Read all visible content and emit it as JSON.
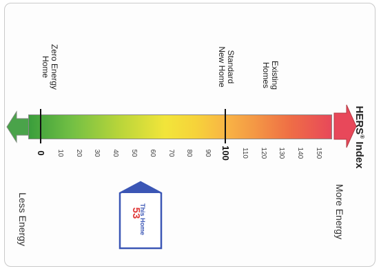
{
  "title": "HERS",
  "title_mark": "®",
  "title_suffix": " Index",
  "left_caption": "Less Energy",
  "right_caption": "More Energy",
  "annotations": {
    "zero": [
      "Zero Energy",
      "Home"
    ],
    "standard": [
      "Standard",
      "New Home"
    ],
    "existing": [
      "Existing",
      "Homes"
    ]
  },
  "scale": {
    "min": 0,
    "max": 150,
    "ticks": [
      "0",
      "10",
      "20",
      "30",
      "40",
      "50",
      "60",
      "70",
      "80",
      "90",
      "100",
      "110",
      "120",
      "130",
      "140",
      "150"
    ],
    "major_ticks": [
      "0",
      "100"
    ]
  },
  "marker": {
    "label": "This Home",
    "value": "53"
  },
  "colors": {
    "low_arrow": "#4aa34a",
    "high_arrow": "#e8485a",
    "marker_border": "#3b56b5",
    "marker_value": "#e03a3a"
  }
}
